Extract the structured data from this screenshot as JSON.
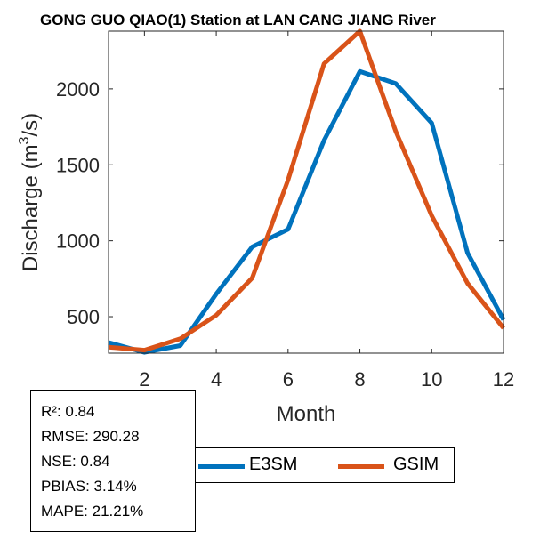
{
  "colors": {
    "e3sm": "#0072BD",
    "gsim": "#D95319"
  },
  "chart_data": {
    "type": "line",
    "title": "GONG GUO QIAO(1)  Station at  LAN CANG JIANG  River",
    "xlabel": "Month",
    "ylabel_base": "Discharge (m",
    "ylabel_sup": "3",
    "ylabel_tail": "/s)",
    "xlim": [
      1,
      12
    ],
    "ylim": [
      260,
      2380
    ],
    "xticks": [
      2,
      4,
      6,
      8,
      10,
      12
    ],
    "yticks": [
      500,
      1000,
      1500,
      2000
    ],
    "x": [
      1,
      2,
      3,
      4,
      5,
      6,
      7,
      8,
      9,
      10,
      11,
      12
    ],
    "series": [
      {
        "name": "E3SM",
        "values": [
          330,
          265,
          310,
          650,
          960,
          1075,
          1660,
          2115,
          2035,
          1775,
          920,
          480
        ]
      },
      {
        "name": "GSIM",
        "values": [
          300,
          280,
          355,
          510,
          755,
          1400,
          2165,
          2380,
          1720,
          1165,
          720,
          425
        ]
      }
    ]
  },
  "stats": {
    "r2": "R²: 0.84",
    "rmse": "RMSE: 290.28",
    "nse": "NSE: 0.84",
    "pbias": "PBIAS: 3.14%",
    "mape": "MAPE: 21.21%"
  },
  "legend": {
    "e3sm_label": "E3SM",
    "gsim_label": "GSIM"
  }
}
